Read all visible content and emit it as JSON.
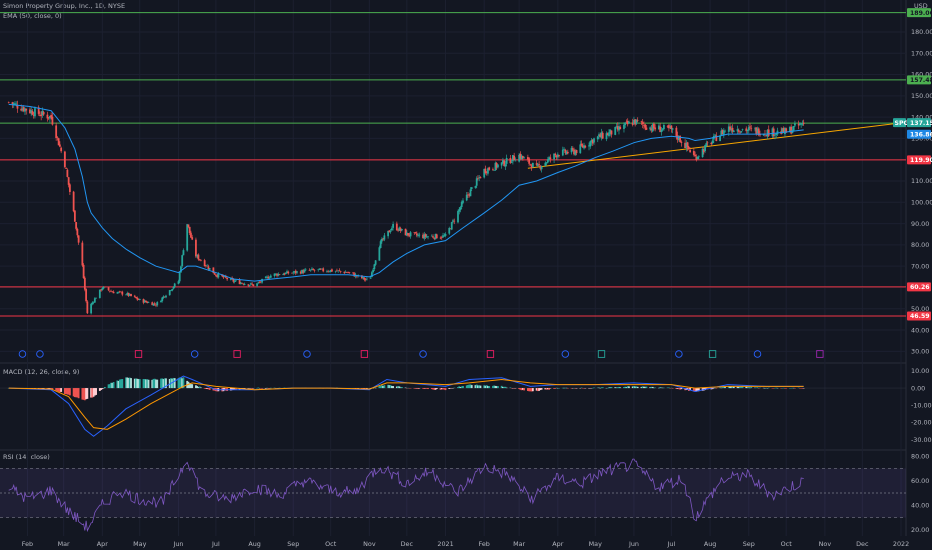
{
  "header": {
    "symbol_line": "Simon Property Group, Inc., 1D, NYSE",
    "ema_line": "EMA (50, close, 0)",
    "currency": "USD"
  },
  "panes": {
    "macd_label": "MACD (12, 26, close, 9)",
    "rsi_label": "RSI (14, close)"
  },
  "colors": {
    "background": "#131722",
    "up": "#26a69a",
    "down": "#ef5350",
    "ema": "#2196f3",
    "trendline": "#f7a600",
    "green_level": "#4caf50",
    "red_level": "#f23645",
    "rsi": "#7e57c2",
    "macd_line": "#2962ff",
    "signal_line": "#ff9800"
  },
  "x_axis": {
    "labels": [
      "Feb",
      "Mar",
      "Apr",
      "May",
      "Jun",
      "Jul",
      "Aug",
      "Sep",
      "Oct",
      "Nov",
      "Dec",
      "2021",
      "Feb",
      "Mar",
      "Apr",
      "May",
      "Jun",
      "Jul",
      "Aug",
      "Sep",
      "Oct",
      "Nov",
      "Dec",
      "2022"
    ]
  },
  "price_axis": {
    "ticks": [
      "180.00",
      "170.00",
      "160.00",
      "150.00",
      "140.00",
      "130.00",
      "120.00",
      "110.00",
      "100.00",
      "90.00",
      "80.00",
      "70.00",
      "60.00",
      "50.00",
      "40.00",
      "30.00"
    ]
  },
  "macd_axis": {
    "ticks": [
      "10.00",
      "0.00",
      "-10.00",
      "-20.00",
      "-30.00"
    ]
  },
  "rsi_axis": {
    "ticks": [
      "80.00",
      "60.00",
      "40.00",
      "20.00"
    ]
  },
  "chart_data": [
    {
      "type": "line",
      "title": "Simon Property Group, Inc., 1D, NYSE",
      "description_series": "approximate daily close",
      "x": [
        "2020-01-17",
        "2020-02-03",
        "2020-02-20",
        "2020-03-02",
        "2020-03-10",
        "2020-03-16",
        "2020-03-20",
        "2020-03-23",
        "2020-04-01",
        "2020-04-09",
        "2020-04-20",
        "2020-05-01",
        "2020-05-14",
        "2020-06-01",
        "2020-06-08",
        "2020-06-15",
        "2020-07-01",
        "2020-07-15",
        "2020-08-01",
        "2020-08-15",
        "2020-09-01",
        "2020-09-15",
        "2020-10-01",
        "2020-10-15",
        "2020-11-01",
        "2020-11-09",
        "2020-11-20",
        "2020-12-01",
        "2020-12-15",
        "2021-01-01",
        "2021-01-15",
        "2021-02-01",
        "2021-02-15",
        "2021-03-01",
        "2021-03-15",
        "2021-04-01",
        "2021-04-15",
        "2021-05-01",
        "2021-05-15",
        "2021-06-01",
        "2021-06-15",
        "2021-07-01",
        "2021-07-15",
        "2021-07-20",
        "2021-08-01",
        "2021-08-15",
        "2021-09-01",
        "2021-09-15",
        "2021-10-01",
        "2021-10-15"
      ],
      "close": [
        147,
        143,
        140,
        118,
        92,
        70,
        48,
        52,
        60,
        58,
        57,
        54,
        52,
        63,
        90,
        75,
        66,
        63,
        61,
        66,
        67,
        68,
        68,
        67,
        63,
        80,
        89,
        85,
        84,
        84,
        100,
        115,
        118,
        122,
        116,
        123,
        124,
        130,
        133,
        138,
        135,
        134,
        125,
        121,
        128,
        135,
        134,
        133,
        133,
        137.15
      ],
      "ema50": [
        146,
        145,
        143,
        135,
        125,
        112,
        100,
        95,
        88,
        83,
        78,
        74,
        70,
        67,
        70,
        70,
        67,
        64,
        63,
        64,
        65,
        66,
        66,
        66,
        65,
        67,
        72,
        76,
        80,
        82,
        88,
        95,
        101,
        108,
        110,
        114,
        117,
        121,
        124,
        128,
        130,
        131,
        130,
        129,
        130,
        132,
        132,
        132,
        133,
        134
      ],
      "horizontal_levels": [
        {
          "value": 189.06,
          "color": "green"
        },
        {
          "value": 157.48,
          "color": "green"
        },
        {
          "value": 137.15,
          "color": "green"
        },
        {
          "value": 119.9,
          "color": "red"
        },
        {
          "value": 60.26,
          "color": "red"
        },
        {
          "value": 46.59,
          "color": "red"
        }
      ],
      "trendline": {
        "from": {
          "x": "2021-03-08",
          "y": 116
        },
        "to": {
          "x": "2021-12-28",
          "y": 137
        }
      },
      "last_price_label": {
        "symbol": "SPG",
        "value": "137.15",
        "ema": "136.86"
      },
      "level_labels": [
        "189.06",
        "157.48",
        "119.90",
        "60.26",
        "46.59"
      ],
      "ylim": [
        25,
        195
      ]
    },
    {
      "type": "line",
      "title": "MACD (12, 26, close, 9)",
      "x": [
        "2020-01-17",
        "2020-02-20",
        "2020-03-05",
        "2020-03-18",
        "2020-03-25",
        "2020-04-05",
        "2020-04-20",
        "2020-05-10",
        "2020-06-05",
        "2020-06-12",
        "2020-07-01",
        "2020-08-01",
        "2020-09-01",
        "2020-10-01",
        "2020-11-01",
        "2020-11-15",
        "2020-12-01",
        "2021-01-01",
        "2021-01-20",
        "2021-02-15",
        "2021-03-10",
        "2021-04-01",
        "2021-05-01",
        "2021-06-01",
        "2021-07-01",
        "2021-07-20",
        "2021-08-15",
        "2021-09-15",
        "2021-10-15"
      ],
      "macd": [
        0,
        -1,
        -9,
        -24,
        -28,
        -22,
        -12,
        -4,
        7,
        5,
        -1,
        -1,
        0,
        0,
        -1,
        5,
        3,
        1,
        5,
        6,
        1,
        2,
        2,
        3,
        2,
        -2,
        2,
        1,
        1
      ],
      "signal": [
        0,
        -0.5,
        -5,
        -17,
        -23,
        -24,
        -18,
        -9,
        1,
        3,
        1,
        -1,
        0,
        0,
        -0.5,
        3,
        3,
        2,
        3,
        5,
        3,
        2,
        2,
        2,
        2,
        0,
        1,
        1,
        1
      ],
      "ylim": [
        -36,
        14
      ]
    },
    {
      "type": "line",
      "title": "RSI (14, close)",
      "x": [
        "2020-01-17",
        "2020-02-01",
        "2020-02-20",
        "2020-03-05",
        "2020-03-20",
        "2020-04-01",
        "2020-04-15",
        "2020-05-01",
        "2020-05-20",
        "2020-06-08",
        "2020-06-20",
        "2020-07-10",
        "2020-08-01",
        "2020-08-20",
        "2020-09-10",
        "2020-10-01",
        "2020-10-20",
        "2020-11-09",
        "2020-12-01",
        "2020-12-20",
        "2021-01-10",
        "2021-02-01",
        "2021-02-20",
        "2021-03-10",
        "2021-04-01",
        "2021-04-20",
        "2021-05-10",
        "2021-06-01",
        "2021-06-20",
        "2021-07-10",
        "2021-07-20",
        "2021-08-10",
        "2021-08-30",
        "2021-09-20",
        "2021-10-15"
      ],
      "values": [
        55,
        45,
        52,
        35,
        22,
        40,
        52,
        45,
        42,
        78,
        50,
        45,
        55,
        48,
        60,
        52,
        50,
        72,
        58,
        68,
        50,
        72,
        65,
        45,
        62,
        58,
        68,
        73,
        55,
        62,
        30,
        60,
        65,
        48,
        60
      ],
      "bands": [
        70,
        50,
        30
      ],
      "ylim": [
        15,
        85
      ]
    }
  ]
}
